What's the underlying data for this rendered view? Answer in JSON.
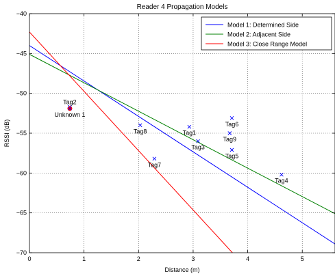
{
  "chart_data": {
    "type": "scatter",
    "title": "Reader 4 Propagation Models",
    "xlabel": "Distance (m)",
    "ylabel": "RSSI (dB)",
    "xlim": [
      0,
      5.6
    ],
    "ylim": [
      -70,
      -40
    ],
    "xticks": [
      0,
      1,
      2,
      3,
      4,
      5
    ],
    "yticks": [
      -70,
      -65,
      -60,
      -55,
      -50,
      -45,
      -40
    ],
    "xtick_labels": [
      "0",
      "1",
      "2",
      "3",
      "4",
      "5"
    ],
    "ytick_labels": [
      "−70",
      "−65",
      "−60",
      "−55",
      "−50",
      "−45",
      "−40"
    ],
    "grid": true,
    "legend_position": "top-right",
    "lines": [
      {
        "name": "Model 1: Determined Side",
        "color": "#0000ff",
        "x": [
          0,
          5.6
        ],
        "y": [
          -44.0,
          -68.9
        ]
      },
      {
        "name": "Model 2: Adjacent Side",
        "color": "#008000",
        "x": [
          0,
          5.6
        ],
        "y": [
          -45.1,
          -65.1
        ]
      },
      {
        "name": "Model 3: Close Range Model",
        "color": "#ff0000",
        "x": [
          0,
          3.72
        ],
        "y": [
          -42.3,
          -70
        ]
      }
    ],
    "points": [
      {
        "label": "Tag1",
        "x": 2.93,
        "y": -54.2,
        "label_pos": "below"
      },
      {
        "label": "Tag2",
        "x": 0.74,
        "y": -51.7,
        "label_pos": "above"
      },
      {
        "label": "Tag3",
        "x": 3.09,
        "y": -56.0,
        "label_pos": "below"
      },
      {
        "label": "Tag4",
        "x": 4.62,
        "y": -60.2,
        "label_pos": "below"
      },
      {
        "label": "Tag5",
        "x": 3.71,
        "y": -57.1,
        "label_pos": "below"
      },
      {
        "label": "Tag6",
        "x": 3.71,
        "y": -53.1,
        "label_pos": "below"
      },
      {
        "label": "Tag7",
        "x": 2.29,
        "y": -58.2,
        "label_pos": "below"
      },
      {
        "label": "Tag8",
        "x": 2.03,
        "y": -54.0,
        "label_pos": "below"
      },
      {
        "label": "Tag9",
        "x": 3.67,
        "y": -55.0,
        "label_pos": "below"
      }
    ],
    "unknown": {
      "label": "Unknown 1",
      "x": 0.74,
      "y": -51.9,
      "color": "#ff0000",
      "marker_color": "#0000ff"
    }
  }
}
